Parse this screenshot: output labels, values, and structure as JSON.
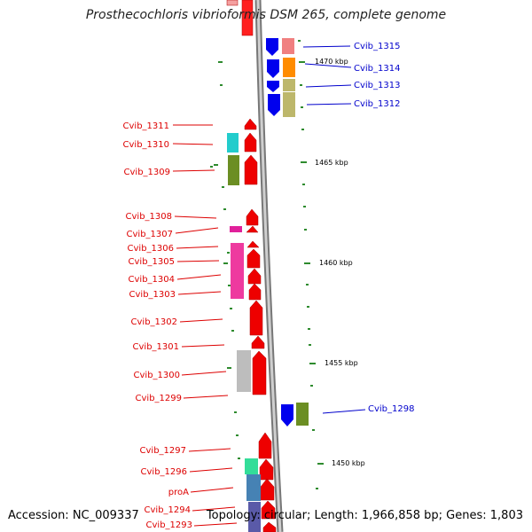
{
  "title": "Prosthecochloris vibrioformis DSM 265, complete genome",
  "accession": "Accession: NC_009337",
  "summary": "Topology: circular; Length: 1,966,858 bp; Genes: 1,803",
  "ticks": [
    "1470 kbp",
    "1465 kbp",
    "1460 kbp",
    "1455 kbp",
    "1450 kbp"
  ],
  "left_genes": [
    "Cvib_1311",
    "Cvib_1310",
    "Cvib_1309",
    "Cvib_1308",
    "Cvib_1307",
    "Cvib_1306",
    "Cvib_1305",
    "Cvib_1304",
    "Cvib_1303",
    "Cvib_1302",
    "Cvib_1301",
    "Cvib_1300",
    "Cvib_1299",
    "Cvib_1297",
    "Cvib_1296",
    "proA",
    "Cvib_1294",
    "Cvib_1293"
  ],
  "right_genes": [
    "Cvib_1315",
    "Cvib_1314",
    "Cvib_1313",
    "Cvib_1312",
    "Cvib_1298"
  ],
  "colors": {
    "forward_label": "#dd0000",
    "reverse_label": "#0000cc",
    "cds_red": "#ff0000",
    "cds_blue": "#0000ee",
    "backbone": "#999999",
    "tick_mark": "#228b22"
  }
}
